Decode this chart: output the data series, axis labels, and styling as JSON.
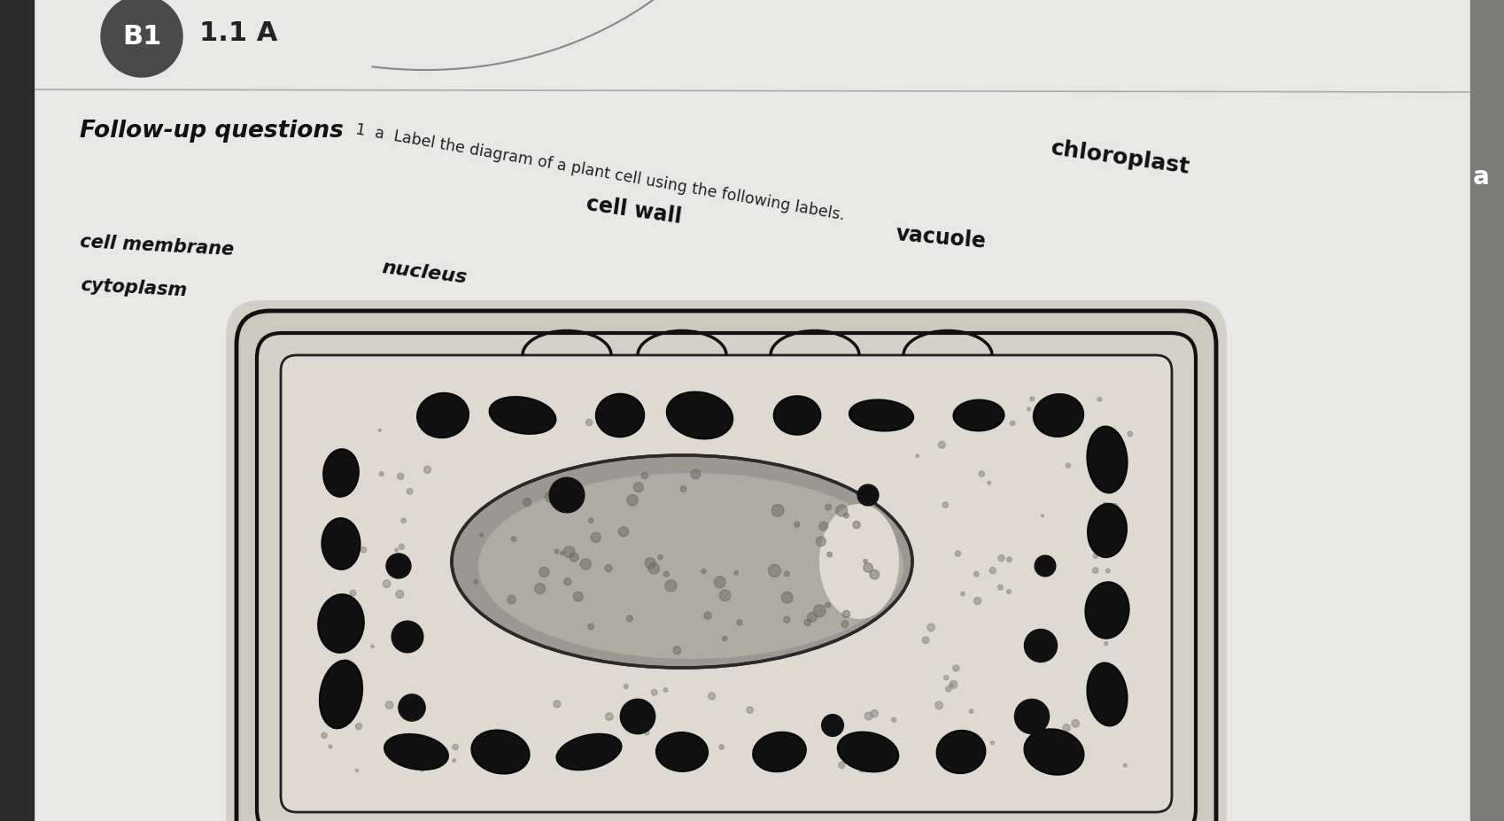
{
  "page_color": "#e8e8e6",
  "b1_circle_color": "#4a4a4a",
  "b1_text": "B1",
  "header_text": "1.1 A",
  "title": "Follow-up questions",
  "instruction": "1  a  Label the diagram of a plant cell using the following labels.",
  "label_chloroplast": "chloroplast",
  "label_cellwall": "cell wall",
  "label_vacuole": "vacuole",
  "label_membrane": "cell membrane",
  "label_nucleus": "nucleus",
  "label_cytoplasm": "cytoplasm",
  "cell_bg": "#d8d5cc",
  "cell_border": "#1a1a1a",
  "nucleus_fill": "#8a8880",
  "chloroplast_fill": "#111111",
  "right_bar_color": "#888880",
  "left_bar_color": "#333333"
}
